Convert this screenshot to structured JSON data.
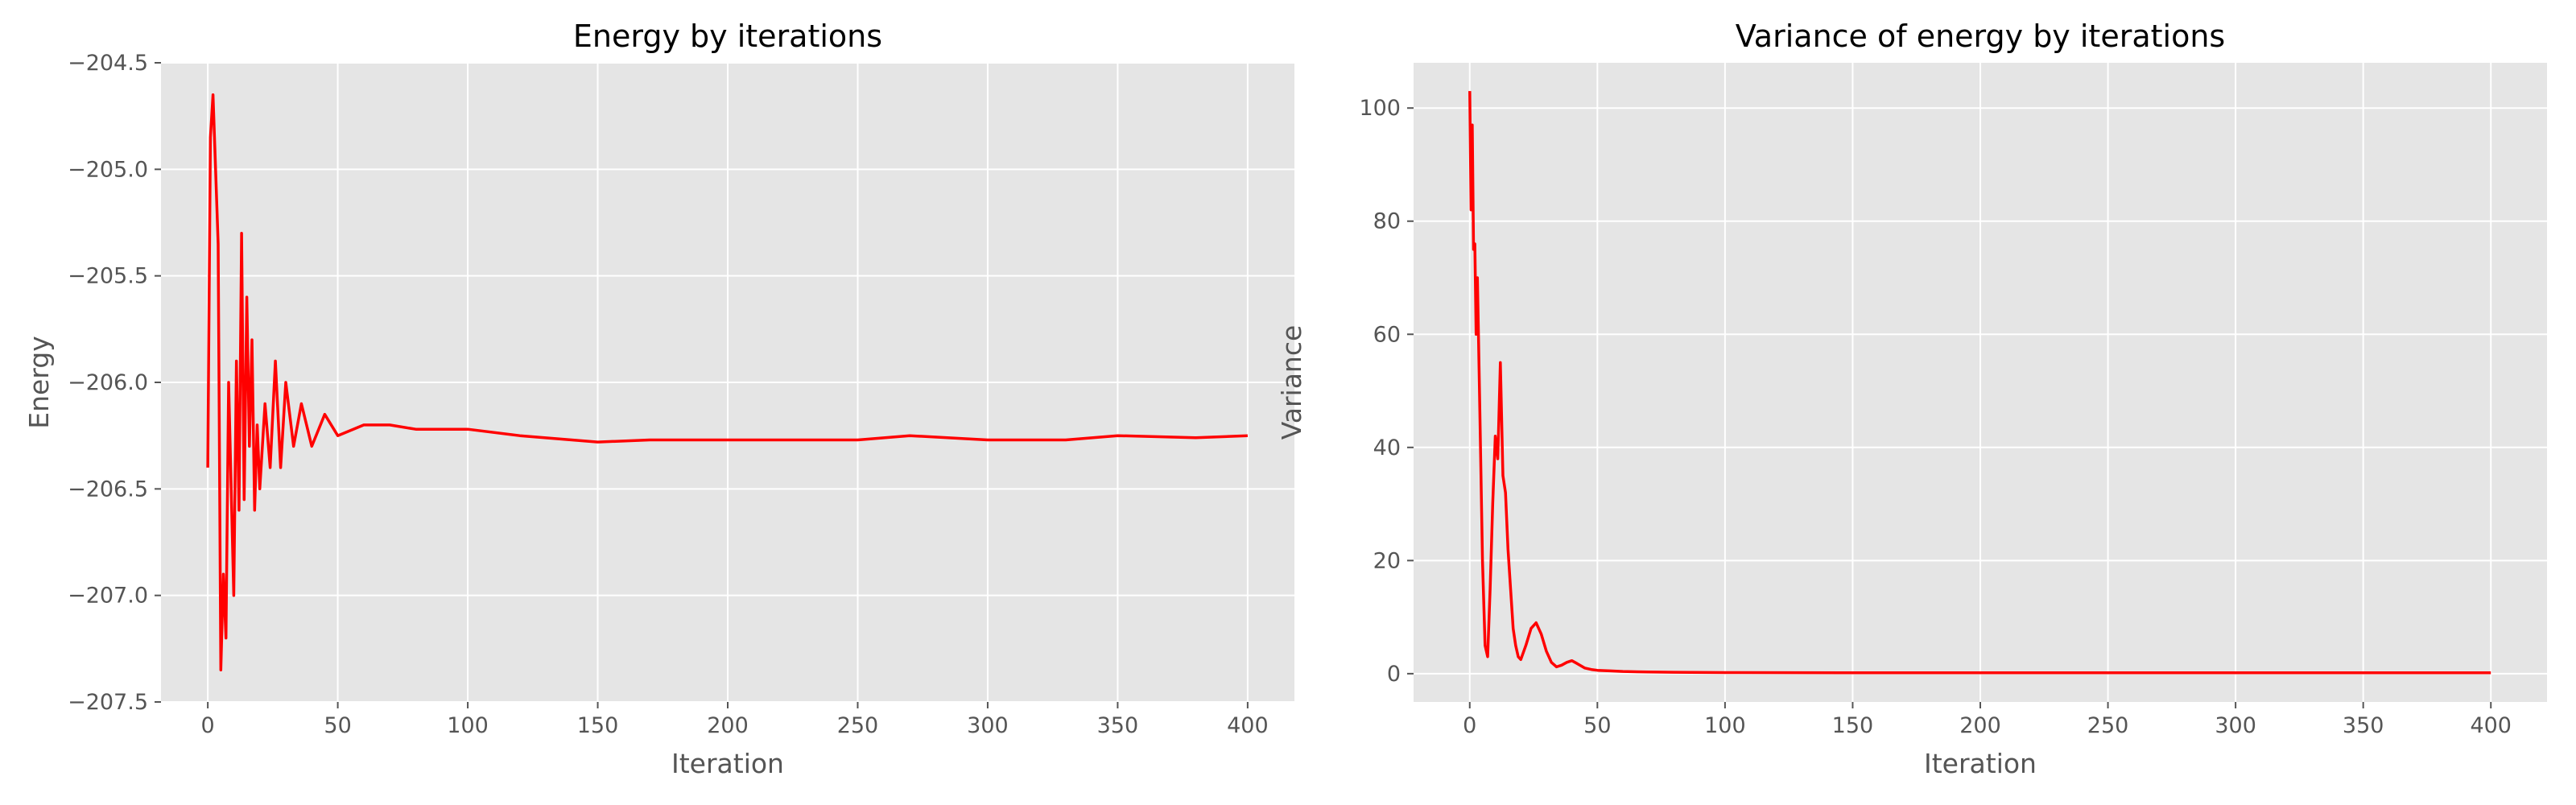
{
  "theme": {
    "panel_background": "#E5E5E5",
    "grid_color": "#FFFFFF",
    "line_color": "#FF0000",
    "tick_color": "#555555"
  },
  "chart_data": [
    {
      "type": "line",
      "title": "Energy by iterations",
      "xlabel": "Iteration",
      "ylabel": "Energy",
      "xlim": [
        -18,
        418
      ],
      "ylim": [
        -207.5,
        -204.5
      ],
      "xticks": [
        0,
        50,
        100,
        150,
        200,
        250,
        300,
        350,
        400
      ],
      "yticks": [
        -207.5,
        -207.0,
        -206.5,
        -206.0,
        -205.5,
        -205.0,
        -204.5
      ],
      "xtick_labels": [
        "0",
        "50",
        "100",
        "150",
        "200",
        "250",
        "300",
        "350",
        "400"
      ],
      "ytick_labels": [
        "−207.5",
        "−207.0",
        "−206.5",
        "−206.0",
        "−205.5",
        "−205.0",
        "−204.5"
      ],
      "grid": true,
      "series": [
        {
          "color": "#FF0000",
          "x": [
            0,
            1,
            2,
            3,
            4,
            5,
            6,
            7,
            8,
            9,
            10,
            11,
            12,
            13,
            14,
            15,
            16,
            17,
            18,
            19,
            20,
            22,
            24,
            26,
            28,
            30,
            33,
            36,
            40,
            45,
            50,
            60,
            70,
            80,
            100,
            120,
            150,
            170,
            200,
            230,
            250,
            270,
            300,
            330,
            350,
            380,
            400
          ],
          "y": [
            -206.4,
            -204.85,
            -204.65,
            -205.0,
            -205.35,
            -207.35,
            -206.9,
            -207.2,
            -206.0,
            -206.5,
            -207.0,
            -205.9,
            -206.6,
            -205.3,
            -206.55,
            -205.6,
            -206.3,
            -205.8,
            -206.6,
            -206.2,
            -206.5,
            -206.1,
            -206.4,
            -205.9,
            -206.4,
            -206.0,
            -206.3,
            -206.1,
            -206.3,
            -206.15,
            -206.25,
            -206.2,
            -206.2,
            -206.22,
            -206.22,
            -206.25,
            -206.28,
            -206.27,
            -206.27,
            -206.27,
            -206.27,
            -206.25,
            -206.27,
            -206.27,
            -206.25,
            -206.26,
            -206.25
          ]
        }
      ]
    },
    {
      "type": "line",
      "title": "Variance of energy by iterations",
      "xlabel": "Iteration",
      "ylabel": "Variance",
      "xlim": [
        -22,
        422
      ],
      "ylim": [
        -5,
        108
      ],
      "xticks": [
        0,
        50,
        100,
        150,
        200,
        250,
        300,
        350,
        400
      ],
      "yticks": [
        0,
        20,
        40,
        60,
        80,
        100
      ],
      "xtick_labels": [
        "0",
        "50",
        "100",
        "150",
        "200",
        "250",
        "300",
        "350",
        "400"
      ],
      "ytick_labels": [
        "0",
        "20",
        "40",
        "60",
        "80",
        "100"
      ],
      "grid": true,
      "series": [
        {
          "color": "#FF0000",
          "x": [
            0,
            0.5,
            1,
            1.5,
            2,
            2.5,
            3,
            4,
            5,
            6,
            7,
            8,
            9,
            10,
            11,
            12,
            13,
            14,
            15,
            16,
            17,
            18,
            19,
            20,
            22,
            24,
            26,
            28,
            30,
            32,
            34,
            36,
            38,
            40,
            42,
            45,
            48,
            50,
            55,
            60,
            70,
            80,
            100,
            150,
            200,
            250,
            300,
            350,
            400
          ],
          "y": [
            103,
            82,
            97,
            75,
            76,
            60,
            70,
            45,
            20,
            5,
            3,
            15,
            30,
            42,
            38,
            55,
            35,
            32,
            22,
            15,
            8,
            5,
            3,
            2.5,
            5,
            8,
            9,
            7,
            4,
            2,
            1.2,
            1.5,
            2,
            2.3,
            1.8,
            1,
            0.7,
            0.6,
            0.5,
            0.4,
            0.3,
            0.25,
            0.2,
            0.15,
            0.15,
            0.15,
            0.15,
            0.15,
            0.15
          ]
        }
      ]
    }
  ]
}
